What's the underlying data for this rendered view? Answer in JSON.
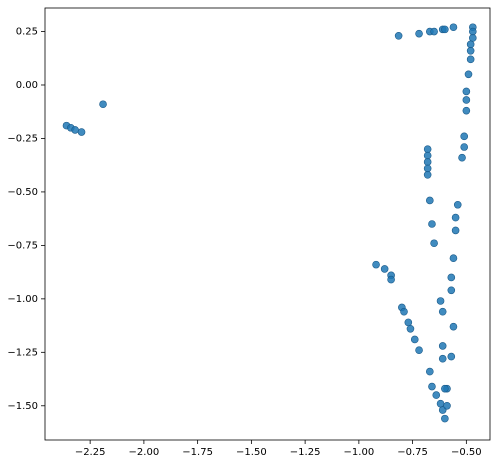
{
  "chart_data": {
    "type": "scatter",
    "color": "#1f77b4",
    "x": [
      -2.36,
      -2.34,
      -2.32,
      -2.29,
      -2.19,
      -0.815,
      -0.72,
      -0.67,
      -0.65,
      -0.61,
      -0.6,
      -0.56,
      -0.47,
      -0.47,
      -0.47,
      -0.48,
      -0.48,
      -0.48,
      -0.49,
      -0.5,
      -0.5,
      -0.5,
      -0.51,
      -0.51,
      -0.52,
      -0.68,
      -0.68,
      -0.68,
      -0.68,
      -0.68,
      -0.67,
      -0.66,
      -0.65,
      -0.54,
      -0.55,
      -0.55,
      -0.56,
      -0.57,
      -0.57,
      -0.92,
      -0.88,
      -0.85,
      -0.85,
      -0.8,
      -0.79,
      -0.77,
      -0.76,
      -0.74,
      -0.72,
      -0.67,
      -0.66,
      -0.64,
      -0.62,
      -0.61,
      -0.6,
      -0.62,
      -0.61,
      -0.56,
      -0.61,
      -0.61,
      -0.57,
      -0.59,
      -0.59,
      -0.6
    ],
    "values": [
      -0.19,
      -0.2,
      -0.21,
      -0.22,
      -0.09,
      0.23,
      0.24,
      0.25,
      0.25,
      0.26,
      0.26,
      0.27,
      0.27,
      0.25,
      0.22,
      0.19,
      0.16,
      0.12,
      0.05,
      -0.03,
      -0.07,
      -0.12,
      -0.24,
      -0.29,
      -0.34,
      -0.3,
      -0.33,
      -0.36,
      -0.39,
      -0.42,
      -0.54,
      -0.65,
      -0.74,
      -0.56,
      -0.62,
      -0.68,
      -0.81,
      -0.9,
      -0.96,
      -0.84,
      -0.86,
      -0.89,
      -0.91,
      -1.04,
      -1.06,
      -1.11,
      -1.14,
      -1.19,
      -1.24,
      -1.34,
      -1.41,
      -1.45,
      -1.49,
      -1.52,
      -1.56,
      -1.01,
      -1.06,
      -1.13,
      -1.22,
      -1.28,
      -1.27,
      -1.42,
      -1.5,
      -1.42
    ],
    "xlim": [
      -2.46,
      -0.39
    ],
    "ylim": [
      -1.66,
      0.36
    ],
    "xticks": [
      {
        "value": -2.25,
        "label": "−2.25"
      },
      {
        "value": -2.0,
        "label": "−2.00"
      },
      {
        "value": -1.75,
        "label": "−1.75"
      },
      {
        "value": -1.5,
        "label": "−1.50"
      },
      {
        "value": -1.25,
        "label": "−1.25"
      },
      {
        "value": -1.0,
        "label": "−1.00"
      },
      {
        "value": -0.75,
        "label": "−0.75"
      },
      {
        "value": -0.5,
        "label": "−0.50"
      }
    ],
    "yticks": [
      {
        "value": 0.25,
        "label": "0.25"
      },
      {
        "value": 0.0,
        "label": "0.00"
      },
      {
        "value": -0.25,
        "label": "−0.25"
      },
      {
        "value": -0.5,
        "label": "−0.50"
      },
      {
        "value": -0.75,
        "label": "−0.75"
      },
      {
        "value": -1.0,
        "label": "−1.00"
      },
      {
        "value": -1.25,
        "label": "−1.25"
      },
      {
        "value": -1.5,
        "label": "−1.50"
      }
    ]
  }
}
